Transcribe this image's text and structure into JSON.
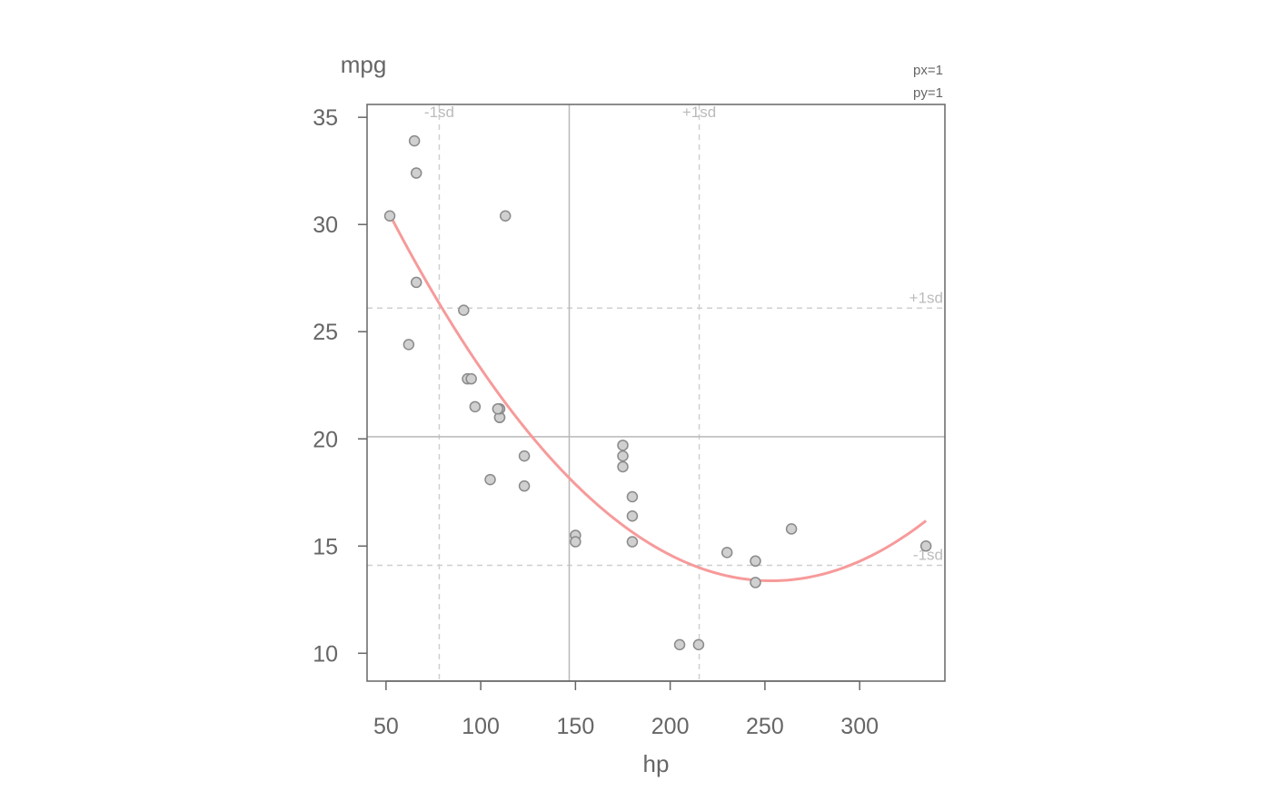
{
  "chart_data": {
    "type": "scatter",
    "xlabel": "hp",
    "ylabel": "mpg",
    "xlim": [
      40,
      345
    ],
    "ylim": [
      8.7,
      35.6
    ],
    "xticks": [
      50,
      100,
      150,
      200,
      250,
      300
    ],
    "yticks": [
      10,
      15,
      20,
      25,
      30,
      35
    ],
    "grid": false,
    "reference_lines": {
      "x_mean": 146.7,
      "x_minus_1sd": 78.1,
      "x_plus_1sd": 215.3,
      "y_mean": 20.1,
      "y_minus_1sd": 14.1,
      "y_plus_1sd": 26.1,
      "labels": {
        "x_minus": "-1sd",
        "x_plus": "+1sd",
        "y_plus": "+1sd",
        "y_minus": "-1sd"
      }
    },
    "corner_labels": [
      "px=1",
      "py=1"
    ],
    "points": [
      {
        "x": 110,
        "y": 21.0
      },
      {
        "x": 110,
        "y": 21.0
      },
      {
        "x": 93,
        "y": 22.8
      },
      {
        "x": 110,
        "y": 21.4
      },
      {
        "x": 175,
        "y": 18.7
      },
      {
        "x": 105,
        "y": 18.1
      },
      {
        "x": 245,
        "y": 14.3
      },
      {
        "x": 62,
        "y": 24.4
      },
      {
        "x": 95,
        "y": 22.8
      },
      {
        "x": 123,
        "y": 19.2
      },
      {
        "x": 123,
        "y": 17.8
      },
      {
        "x": 180,
        "y": 16.4
      },
      {
        "x": 180,
        "y": 17.3
      },
      {
        "x": 180,
        "y": 15.2
      },
      {
        "x": 205,
        "y": 10.4
      },
      {
        "x": 215,
        "y": 10.4
      },
      {
        "x": 230,
        "y": 14.7
      },
      {
        "x": 66,
        "y": 32.4
      },
      {
        "x": 52,
        "y": 30.4
      },
      {
        "x": 65,
        "y": 33.9
      },
      {
        "x": 97,
        "y": 21.5
      },
      {
        "x": 150,
        "y": 15.5
      },
      {
        "x": 150,
        "y": 15.2
      },
      {
        "x": 245,
        "y": 13.3
      },
      {
        "x": 175,
        "y": 19.2
      },
      {
        "x": 66,
        "y": 27.3
      },
      {
        "x": 91,
        "y": 26.0
      },
      {
        "x": 113,
        "y": 30.4
      },
      {
        "x": 264,
        "y": 15.8
      },
      {
        "x": 175,
        "y": 19.7
      },
      {
        "x": 335,
        "y": 15.0
      },
      {
        "x": 109,
        "y": 21.4
      }
    ],
    "fit_curve": {
      "type": "quadratic",
      "x_range": [
        52,
        335
      ],
      "coefficients": [
        40.41,
        -0.2133,
        0.0004208
      ]
    },
    "colors": {
      "points_fill": "#d0d0d0",
      "points_stroke": "#8a8a8a",
      "fit_line": "#f79a9a",
      "mean_line": "#b8b8b8",
      "sd_line": "#cfcfcf",
      "axis": "#666666"
    }
  }
}
